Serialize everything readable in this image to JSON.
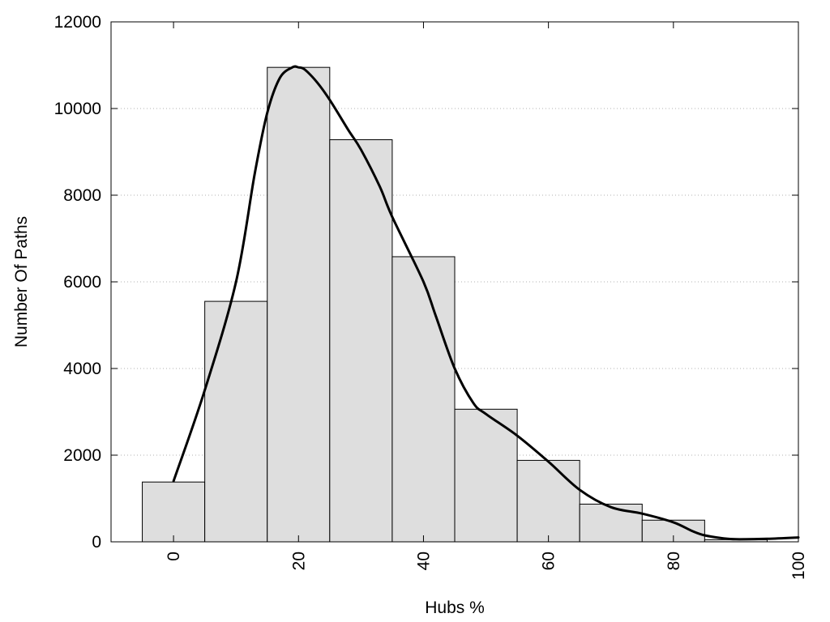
{
  "chart_data": {
    "type": "bar",
    "xlabel": "Hubs %",
    "ylabel": "Number Of Paths",
    "xlim": [
      -10,
      100
    ],
    "ylim": [
      0,
      12000
    ],
    "x_ticks": [
      0,
      20,
      40,
      60,
      80,
      100
    ],
    "x_tick_labels": [
      "0",
      "20",
      "40",
      "60",
      "80",
      "100"
    ],
    "y_ticks": [
      0,
      2000,
      4000,
      6000,
      8000,
      10000,
      12000
    ],
    "y_tick_labels": [
      "0",
      "2000",
      "4000",
      "6000",
      "8000",
      "10000",
      "12000"
    ],
    "grid": "horizontal dotted",
    "bin_width": 10,
    "bins": [
      0,
      10,
      20,
      30,
      40,
      50,
      60,
      70,
      80,
      90
    ],
    "values": [
      1380,
      5550,
      10950,
      9280,
      6580,
      3060,
      1880,
      870,
      500,
      50
    ],
    "density_curve": {
      "x": [
        0,
        5,
        10,
        13,
        15,
        17,
        19,
        20,
        21,
        23,
        25,
        28,
        30,
        33,
        35,
        40,
        42,
        45,
        48,
        50,
        55,
        60,
        65,
        70,
        75,
        80,
        83,
        85,
        88,
        90,
        95,
        100
      ],
      "y": [
        1400,
        3500,
        6000,
        8500,
        9900,
        10700,
        10950,
        10950,
        10900,
        10600,
        10200,
        9500,
        9050,
        8200,
        7500,
        6000,
        5200,
        4000,
        3200,
        2950,
        2450,
        1850,
        1200,
        800,
        650,
        450,
        250,
        150,
        80,
        60,
        70,
        100
      ]
    },
    "colors": {
      "bar_fill": "#dedede",
      "bar_stroke": "#000000",
      "curve": "#000000"
    }
  }
}
